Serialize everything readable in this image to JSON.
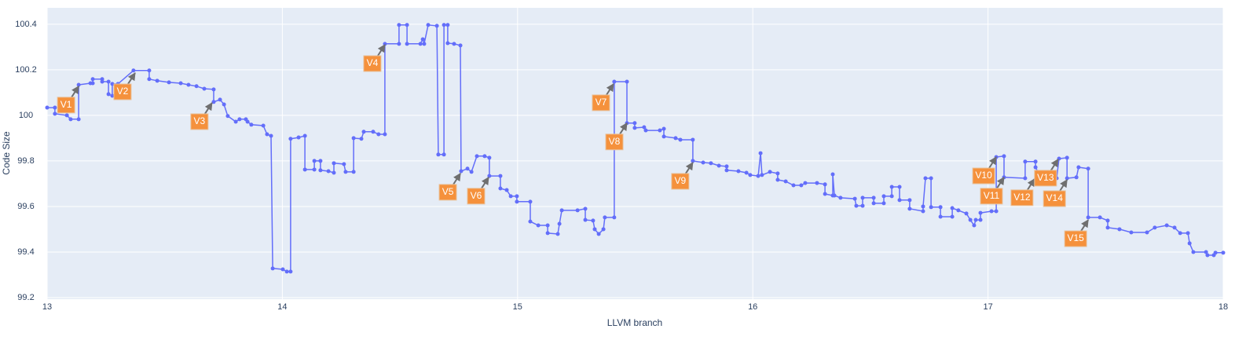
{
  "chart_data": {
    "type": "line",
    "x_label": "LLVM branch",
    "y_label": "Code Size",
    "xlim": [
      13,
      18
    ],
    "xticks": [
      13,
      14,
      15,
      16,
      17,
      18
    ],
    "ylim": [
      99.193,
      100.472
    ],
    "yticks": [
      99.2,
      99.4,
      99.6,
      99.8,
      100,
      100.2,
      100.4
    ],
    "grid": true,
    "series": [
      {
        "color": "#636efa",
        "x": [
          13.0,
          13.033,
          13.033,
          13.084,
          13.1,
          13.134,
          13.134,
          13.184,
          13.194,
          13.194,
          13.234,
          13.234,
          13.261,
          13.261,
          13.277,
          13.277,
          13.301,
          13.367,
          13.434,
          13.434,
          13.468,
          13.518,
          13.568,
          13.601,
          13.635,
          13.668,
          13.708,
          13.708,
          13.735,
          13.752,
          13.768,
          13.802,
          13.818,
          13.845,
          13.852,
          13.868,
          13.919,
          13.935,
          13.952,
          13.959,
          14.002,
          14.019,
          14.035,
          14.035,
          14.069,
          14.096,
          14.096,
          14.136,
          14.136,
          14.162,
          14.162,
          14.196,
          14.219,
          14.219,
          14.262,
          14.269,
          14.303,
          14.303,
          14.336,
          14.346,
          14.386,
          14.409,
          14.436,
          14.436,
          14.496,
          14.496,
          14.53,
          14.53,
          14.587,
          14.597,
          14.603,
          14.62,
          14.657,
          14.663,
          14.687,
          14.687,
          14.703,
          14.703,
          14.73,
          14.757,
          14.76,
          14.787,
          14.804,
          14.827,
          14.86,
          14.88,
          14.88,
          14.927,
          14.927,
          14.954,
          14.971,
          14.997,
          14.997,
          15.054,
          15.054,
          15.088,
          15.128,
          15.128,
          15.171,
          15.178,
          15.188,
          15.255,
          15.288,
          15.288,
          15.321,
          15.328,
          15.345,
          15.365,
          15.371,
          15.411,
          15.411,
          15.465,
          15.465,
          15.498,
          15.498,
          15.538,
          15.545,
          15.605,
          15.622,
          15.622,
          15.672,
          15.692,
          15.745,
          15.745,
          15.789,
          15.822,
          15.856,
          15.889,
          15.889,
          15.939,
          15.973,
          15.989,
          16.023,
          16.033,
          16.039,
          16.073,
          16.106,
          16.106,
          16.14,
          16.173,
          16.206,
          16.223,
          16.273,
          16.307,
          16.307,
          16.34,
          16.34,
          16.347,
          16.373,
          16.434,
          16.44,
          16.467,
          16.467,
          16.514,
          16.514,
          16.557,
          16.557,
          16.591,
          16.591,
          16.624,
          16.624,
          16.667,
          16.667,
          16.724,
          16.724,
          16.734,
          16.758,
          16.758,
          16.798,
          16.798,
          16.848,
          16.848,
          16.874,
          16.908,
          16.925,
          16.941,
          16.948,
          16.968,
          16.968,
          17.015,
          17.035,
          17.035,
          17.068,
          17.068,
          17.158,
          17.158,
          17.202,
          17.202,
          17.225,
          17.292,
          17.302,
          17.336,
          17.336,
          17.376,
          17.385,
          17.426,
          17.426,
          17.476,
          17.509,
          17.509,
          17.559,
          17.609,
          17.676,
          17.709,
          17.76,
          17.793,
          17.817,
          17.85,
          17.857,
          17.873,
          17.927,
          17.933,
          17.96,
          17.967,
          18.0
        ],
        "values": [
          100.034,
          100.034,
          100.007,
          100.0,
          99.983,
          99.983,
          100.134,
          100.141,
          100.141,
          100.159,
          100.159,
          100.148,
          100.148,
          100.093,
          100.086,
          100.138,
          100.138,
          100.197,
          100.197,
          100.159,
          100.152,
          100.145,
          100.141,
          100.134,
          100.128,
          100.117,
          100.114,
          100.059,
          100.069,
          100.048,
          99.997,
          99.972,
          99.983,
          99.983,
          99.972,
          99.959,
          99.955,
          99.917,
          99.91,
          99.328,
          99.324,
          99.314,
          99.314,
          99.897,
          99.903,
          99.91,
          99.762,
          99.762,
          99.8,
          99.8,
          99.759,
          99.755,
          99.748,
          99.79,
          99.786,
          99.752,
          99.752,
          99.9,
          99.897,
          99.928,
          99.928,
          99.917,
          99.917,
          100.314,
          100.314,
          100.397,
          100.397,
          100.314,
          100.314,
          100.334,
          100.314,
          100.397,
          100.393,
          99.828,
          99.828,
          100.397,
          100.397,
          100.317,
          100.314,
          100.307,
          99.755,
          99.766,
          99.752,
          99.821,
          99.821,
          99.814,
          99.734,
          99.734,
          99.679,
          99.672,
          99.645,
          99.645,
          99.621,
          99.621,
          99.534,
          99.517,
          99.517,
          99.483,
          99.479,
          99.524,
          99.583,
          99.583,
          99.59,
          99.541,
          99.538,
          99.5,
          99.479,
          99.5,
          99.552,
          99.552,
          100.148,
          100.148,
          99.966,
          99.966,
          99.945,
          99.948,
          99.934,
          99.934,
          99.941,
          99.907,
          99.9,
          99.893,
          99.893,
          99.8,
          99.793,
          99.79,
          99.779,
          99.776,
          99.759,
          99.755,
          99.748,
          99.738,
          99.734,
          99.834,
          99.738,
          99.752,
          99.745,
          99.717,
          99.71,
          99.693,
          99.693,
          99.703,
          99.703,
          99.697,
          99.655,
          99.648,
          99.741,
          99.648,
          99.638,
          99.634,
          99.603,
          99.603,
          99.638,
          99.638,
          99.614,
          99.614,
          99.645,
          99.645,
          99.686,
          99.686,
          99.628,
          99.628,
          99.59,
          99.579,
          99.6,
          99.724,
          99.724,
          99.597,
          99.597,
          99.555,
          99.555,
          99.593,
          99.583,
          99.569,
          99.541,
          99.517,
          99.541,
          99.541,
          99.572,
          99.579,
          99.579,
          99.817,
          99.821,
          99.728,
          99.724,
          99.797,
          99.797,
          99.772,
          99.724,
          99.724,
          99.81,
          99.814,
          99.724,
          99.728,
          99.772,
          99.766,
          99.552,
          99.552,
          99.538,
          99.507,
          99.5,
          99.486,
          99.486,
          99.507,
          99.517,
          99.507,
          99.483,
          99.483,
          99.438,
          99.4,
          99.4,
          99.386,
          99.386,
          99.397,
          99.397
        ]
      }
    ],
    "annotations": [
      {
        "text": "V1",
        "x": 13.134,
        "y": 100.128
      },
      {
        "text": "V2",
        "x": 13.374,
        "y": 100.186
      },
      {
        "text": "V3",
        "x": 13.701,
        "y": 100.055
      },
      {
        "text": "V4",
        "x": 14.436,
        "y": 100.31
      },
      {
        "text": "V5",
        "x": 14.757,
        "y": 99.745
      },
      {
        "text": "V6",
        "x": 14.877,
        "y": 99.728
      },
      {
        "text": "V7",
        "x": 15.408,
        "y": 100.138
      },
      {
        "text": "V8",
        "x": 15.465,
        "y": 99.966
      },
      {
        "text": "V9",
        "x": 15.745,
        "y": 99.793
      },
      {
        "text": "V10",
        "x": 17.035,
        "y": 99.817
      },
      {
        "text": "V11",
        "x": 17.068,
        "y": 99.728
      },
      {
        "text": "V12",
        "x": 17.198,
        "y": 99.721
      },
      {
        "text": "V13",
        "x": 17.298,
        "y": 99.807
      },
      {
        "text": "V14",
        "x": 17.336,
        "y": 99.717
      },
      {
        "text": "V15",
        "x": 17.426,
        "y": 99.541
      }
    ]
  }
}
